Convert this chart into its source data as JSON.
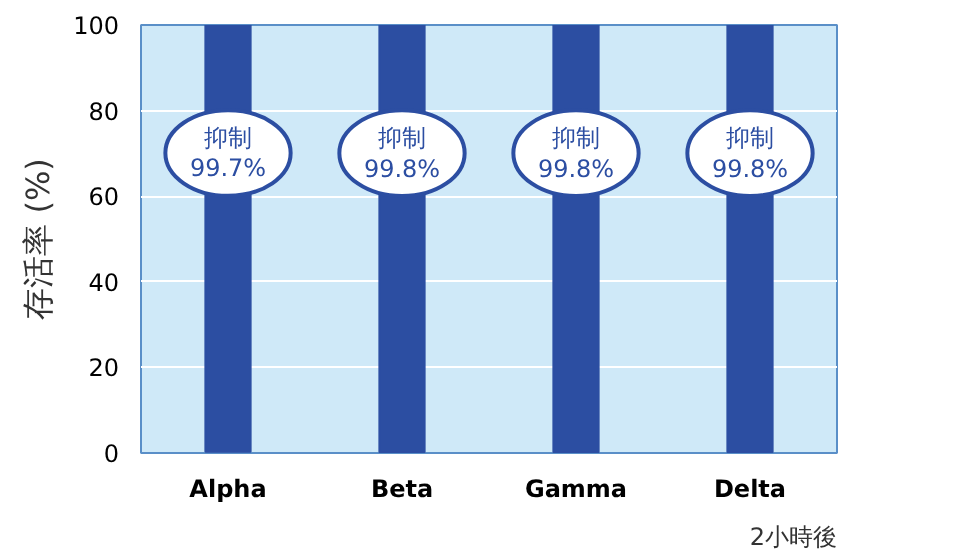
{
  "chart_data": {
    "type": "bar",
    "ylabel": "存活率 (%)",
    "categories": [
      "Alpha",
      "Beta",
      "Gamma",
      "Delta"
    ],
    "base": [
      100,
      100,
      100,
      100
    ],
    "values": [
      -99.7,
      -99.8,
      -99.8,
      -99.8
    ],
    "value_labels": [
      "抑制\n99.7%",
      "抑制\n99.8%",
      "抑制\n99.8%",
      "抑制\n99.8%"
    ],
    "color": "#2c4ea2",
    "ylim": [
      0,
      100
    ],
    "yticks": [
      0,
      20,
      40,
      60,
      80,
      100
    ],
    "grid": "y",
    "annotations": [
      "2小時後"
    ]
  }
}
